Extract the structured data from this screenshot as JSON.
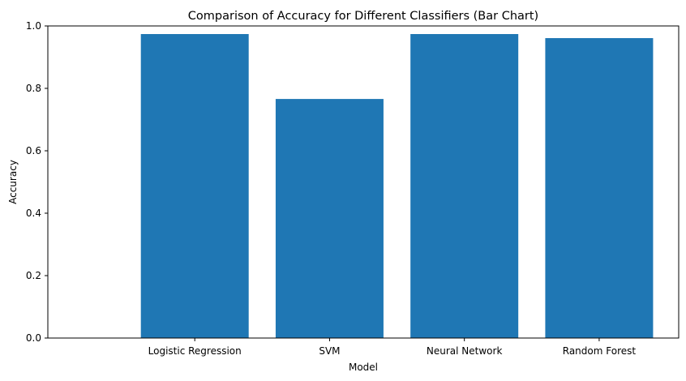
{
  "chart_data": {
    "type": "bar",
    "title": "Comparison of Accuracy for Different Classifiers (Bar Chart)",
    "xlabel": "Model",
    "ylabel": "Accuracy",
    "categories": [
      "Logistic Regression",
      "SVM",
      "Neural Network",
      "Random Forest"
    ],
    "values": [
      0.974,
      0.766,
      0.974,
      0.961
    ],
    "ylim": [
      0,
      1.0
    ],
    "yticks": [
      "0.0",
      "0.2",
      "0.4",
      "0.6",
      "0.8",
      "1.0"
    ],
    "grid": false,
    "legend": "none",
    "bar_color": "#1f77b4"
  }
}
